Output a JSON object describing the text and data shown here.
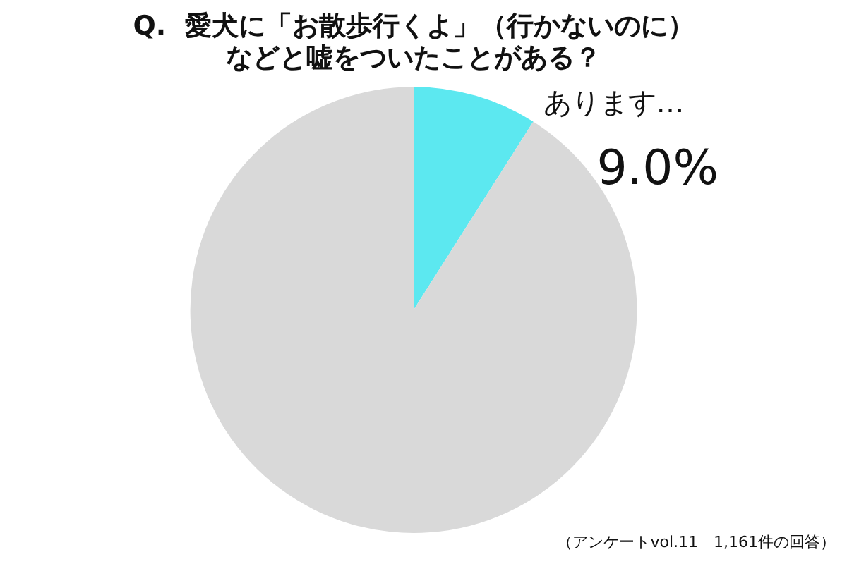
{
  "chart_data": {
    "type": "pie",
    "title": "Q.  愛犬に「お散歩行くよ」（行かないのに）などと嘘をついたことがある？",
    "categories": [
      "あります…",
      null
    ],
    "values": [
      9.0,
      91.0
    ],
    "colors": [
      "#5ce8f0",
      "#d9d9d9"
    ],
    "value_labels": [
      "9.0%",
      null
    ],
    "legend": false,
    "annotations": [
      "（アンケートvol.11　1,161件の回答）"
    ]
  }
}
